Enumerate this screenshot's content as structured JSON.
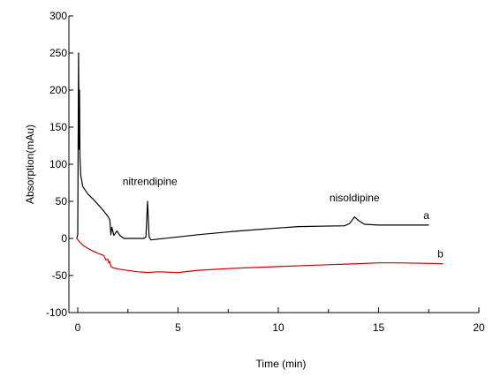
{
  "chart_data": {
    "type": "line",
    "title": "",
    "xlabel": "Time (min)",
    "ylabel": "Absorption(mAu)",
    "xlim": [
      0,
      20
    ],
    "ylim": [
      -100,
      300
    ],
    "xticks": [
      0,
      5,
      10,
      15,
      20
    ],
    "yticks": [
      -100,
      -50,
      0,
      50,
      100,
      150,
      200,
      250,
      300
    ],
    "series": [
      {
        "name": "a",
        "color": "#000000",
        "points": [
          [
            -0.05,
            0
          ],
          [
            0.0,
            5
          ],
          [
            0.04,
            250
          ],
          [
            0.07,
            120
          ],
          [
            0.09,
            200
          ],
          [
            0.11,
            110
          ],
          [
            0.15,
            85
          ],
          [
            0.25,
            70
          ],
          [
            0.5,
            60
          ],
          [
            0.8,
            52
          ],
          [
            1.2,
            40
          ],
          [
            1.5,
            30
          ],
          [
            1.6,
            25
          ],
          [
            1.65,
            5
          ],
          [
            1.7,
            15
          ],
          [
            1.8,
            4
          ],
          [
            1.95,
            10
          ],
          [
            2.1,
            4
          ],
          [
            2.3,
            0
          ],
          [
            3.3,
            0
          ],
          [
            3.4,
            2
          ],
          [
            3.48,
            50
          ],
          [
            3.56,
            2
          ],
          [
            3.65,
            -2
          ],
          [
            4.0,
            -1
          ],
          [
            5.0,
            2
          ],
          [
            6.0,
            5
          ],
          [
            8.0,
            10
          ],
          [
            10.0,
            14
          ],
          [
            11.0,
            16
          ],
          [
            13.3,
            17
          ],
          [
            13.55,
            20
          ],
          [
            13.8,
            29
          ],
          [
            14.0,
            24
          ],
          [
            14.3,
            19
          ],
          [
            15.0,
            18
          ],
          [
            16.0,
            18
          ],
          [
            17.5,
            18
          ]
        ]
      },
      {
        "name": "b",
        "color": "#d40000",
        "points": [
          [
            -0.05,
            0
          ],
          [
            0.1,
            -5
          ],
          [
            0.3,
            -10
          ],
          [
            0.6,
            -15
          ],
          [
            1.0,
            -20
          ],
          [
            1.3,
            -23
          ],
          [
            1.4,
            -29
          ],
          [
            1.5,
            -28
          ],
          [
            1.55,
            -33
          ],
          [
            1.6,
            -31
          ],
          [
            1.65,
            -38
          ],
          [
            1.8,
            -40
          ],
          [
            2.2,
            -42
          ],
          [
            3.0,
            -45
          ],
          [
            3.5,
            -46
          ],
          [
            4.0,
            -45
          ],
          [
            5.0,
            -46
          ],
          [
            6.0,
            -43
          ],
          [
            8.0,
            -40
          ],
          [
            10.0,
            -38
          ],
          [
            12.0,
            -36
          ],
          [
            14.0,
            -34
          ],
          [
            15.0,
            -33
          ],
          [
            16.0,
            -33
          ],
          [
            18.2,
            -34
          ]
        ]
      }
    ],
    "annotations": [
      {
        "text": "nitrendipine",
        "x": 3.6,
        "y": 72
      },
      {
        "text": "nisoldipine",
        "x": 13.8,
        "y": 50
      }
    ]
  }
}
